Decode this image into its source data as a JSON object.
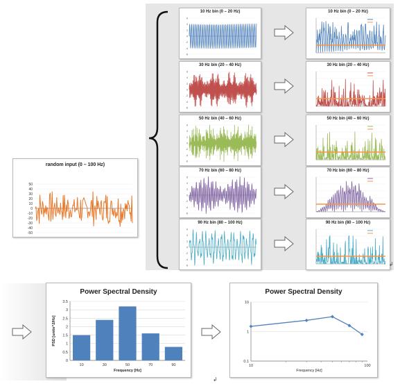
{
  "input_chart": {
    "title": "random input (0 – 100 Hz)",
    "y_ticks": [
      "50",
      "40",
      "30",
      "20",
      "10",
      "0",
      "-10",
      "-20",
      "-30",
      "-40",
      "-50"
    ],
    "color": "#e8792b"
  },
  "bins": [
    {
      "title": "10 Hz bin (0 – 20 Hz)",
      "psd_title": "10 Hz bin (0 – 20 Hz)",
      "color": "#4f81bd"
    },
    {
      "title": "30 Hz bin (20 – 40 Hz)",
      "psd_title": "30 Hz bin (20 – 40 Hz)",
      "color": "#c0504d"
    },
    {
      "title": "50 Hz bin (40 – 60 Hz)",
      "psd_title": "50 Hz bin (40 – 60 Hz)",
      "color": "#9bbb59"
    },
    {
      "title": "70 Hz bin (60 – 80 Hz)",
      "psd_title": "70 Hz bin (60 – 80 Hz)",
      "color": "#8064a2"
    },
    {
      "title": "90 Hz bin (80 – 100 Hz)",
      "psd_title": "90 Hz bin (80 – 100 Hz)",
      "color": "#4bacc6"
    }
  ],
  "bar_psd": {
    "title": "Power Spectral Density",
    "xlabel": "Frequency [Hz]",
    "ylabel": "PSD [units^2/Hz]"
  },
  "log_psd": {
    "title": "Power Spectral Density",
    "xlabel": "Frequency [Hz]"
  },
  "chart_data": [
    {
      "type": "bar",
      "title": "Power Spectral Density",
      "categories": [
        "10",
        "30",
        "50",
        "70",
        "90"
      ],
      "values": [
        1.5,
        2.4,
        3.2,
        1.6,
        0.8
      ],
      "xlabel": "Frequency [Hz]",
      "ylabel": "PSD [units^2/Hz]",
      "ylim": [
        0,
        3.5
      ],
      "yticks": [
        "0",
        "0.5",
        "1",
        "1.5",
        "2",
        "2.5",
        "3",
        "3.5"
      ],
      "color": "#4f81bd"
    },
    {
      "type": "line",
      "title": "Power Spectral Density",
      "x": [
        10,
        30,
        50,
        70,
        90
      ],
      "values": [
        1.5,
        2.4,
        3.2,
        1.6,
        0.8
      ],
      "xlabel": "Frequency [Hz]",
      "xscale": "log",
      "yscale": "log",
      "xticks": [
        "10",
        "100"
      ],
      "yticks": [
        "0.1",
        "1",
        "10"
      ],
      "color": "#4f81bd"
    }
  ]
}
